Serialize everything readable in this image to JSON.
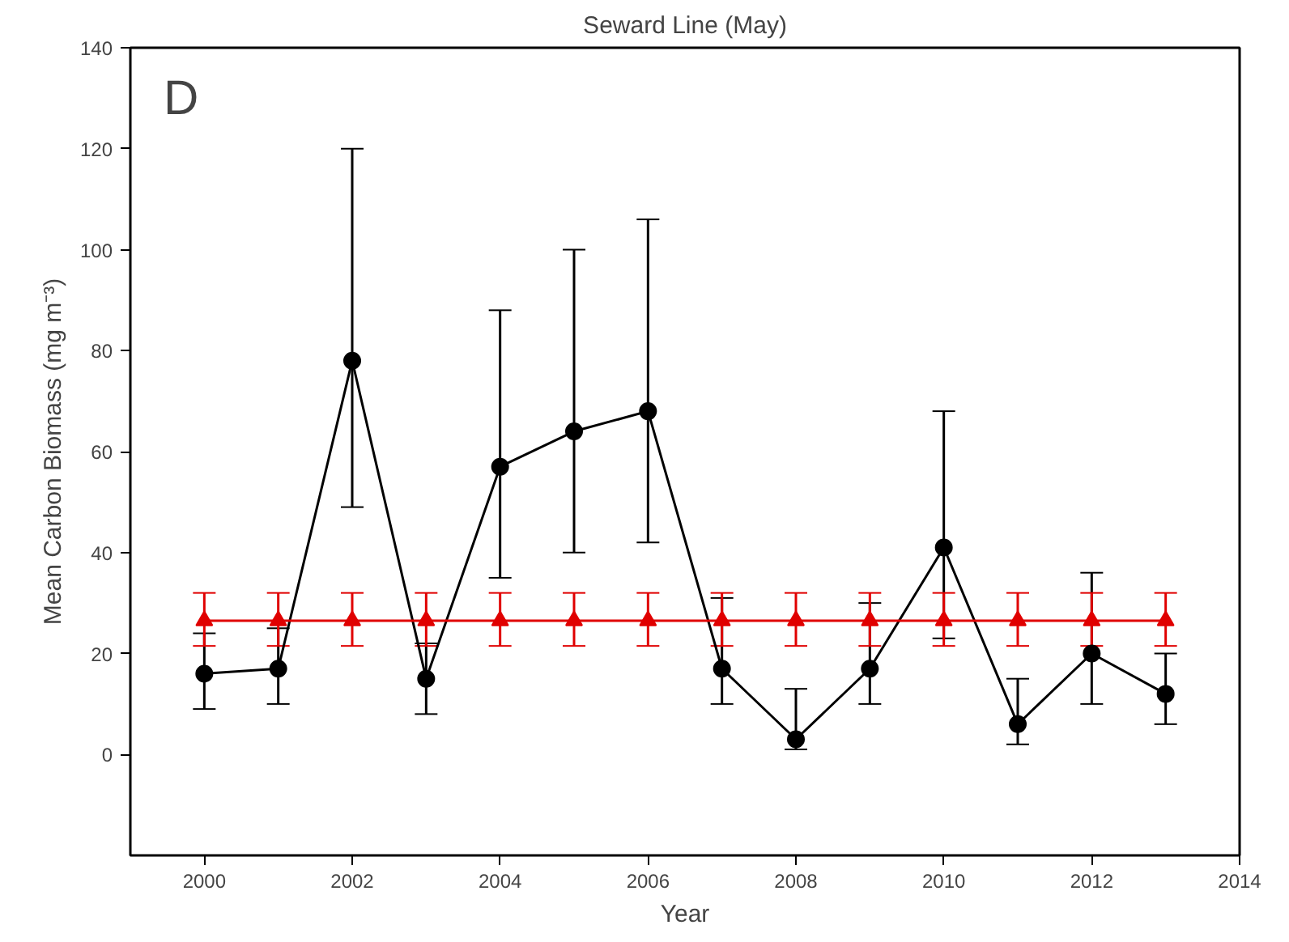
{
  "chart_data": {
    "type": "line",
    "title": "Seward Line (May)",
    "xlabel": "Year",
    "ylabel": "Mean Carbon Biomass (mg m⁻³)",
    "annotations": [
      "D"
    ],
    "x": [
      2000,
      2001,
      2002,
      2003,
      2004,
      2005,
      2006,
      2007,
      2008,
      2009,
      2010,
      2011,
      2012,
      2013
    ],
    "series": [
      {
        "color": "#000000",
        "marker": "circle",
        "values": [
          16,
          17,
          78,
          15,
          57,
          64,
          68,
          17,
          3,
          17,
          41,
          6,
          20,
          12
        ],
        "errors": [
          [
            9,
            24
          ],
          [
            10,
            25
          ],
          [
            49,
            120
          ],
          [
            8,
            22
          ],
          [
            35,
            88
          ],
          [
            40,
            100
          ],
          [
            42,
            106
          ],
          [
            10,
            31
          ],
          [
            1,
            13
          ],
          [
            10,
            30
          ],
          [
            23,
            68
          ],
          [
            2,
            15
          ],
          [
            10,
            36
          ],
          [
            6,
            20
          ]
        ]
      },
      {
        "color": "#e00000",
        "marker": "triangle",
        "values": [
          26.5,
          26.5,
          26.5,
          26.5,
          26.5,
          26.5,
          26.5,
          26.5,
          26.5,
          26.5,
          26.5,
          26.5,
          26.5,
          26.5
        ],
        "errors": [
          [
            21.5,
            32
          ],
          [
            21.5,
            32
          ],
          [
            21.5,
            32
          ],
          [
            21.5,
            32
          ],
          [
            21.5,
            32
          ],
          [
            21.5,
            32
          ],
          [
            21.5,
            32
          ],
          [
            21.5,
            32
          ],
          [
            21.5,
            32
          ],
          [
            21.5,
            32
          ],
          [
            21.5,
            32
          ],
          [
            21.5,
            32
          ],
          [
            21.5,
            32
          ],
          [
            21.5,
            32
          ]
        ]
      }
    ],
    "xlim": [
      1999,
      2014
    ],
    "xticks": [
      2000,
      2002,
      2004,
      2006,
      2008,
      2010,
      2012,
      2014
    ],
    "ylim": [
      -20,
      140
    ],
    "yticks": [
      0,
      20,
      40,
      60,
      80,
      100,
      120,
      140
    ]
  }
}
